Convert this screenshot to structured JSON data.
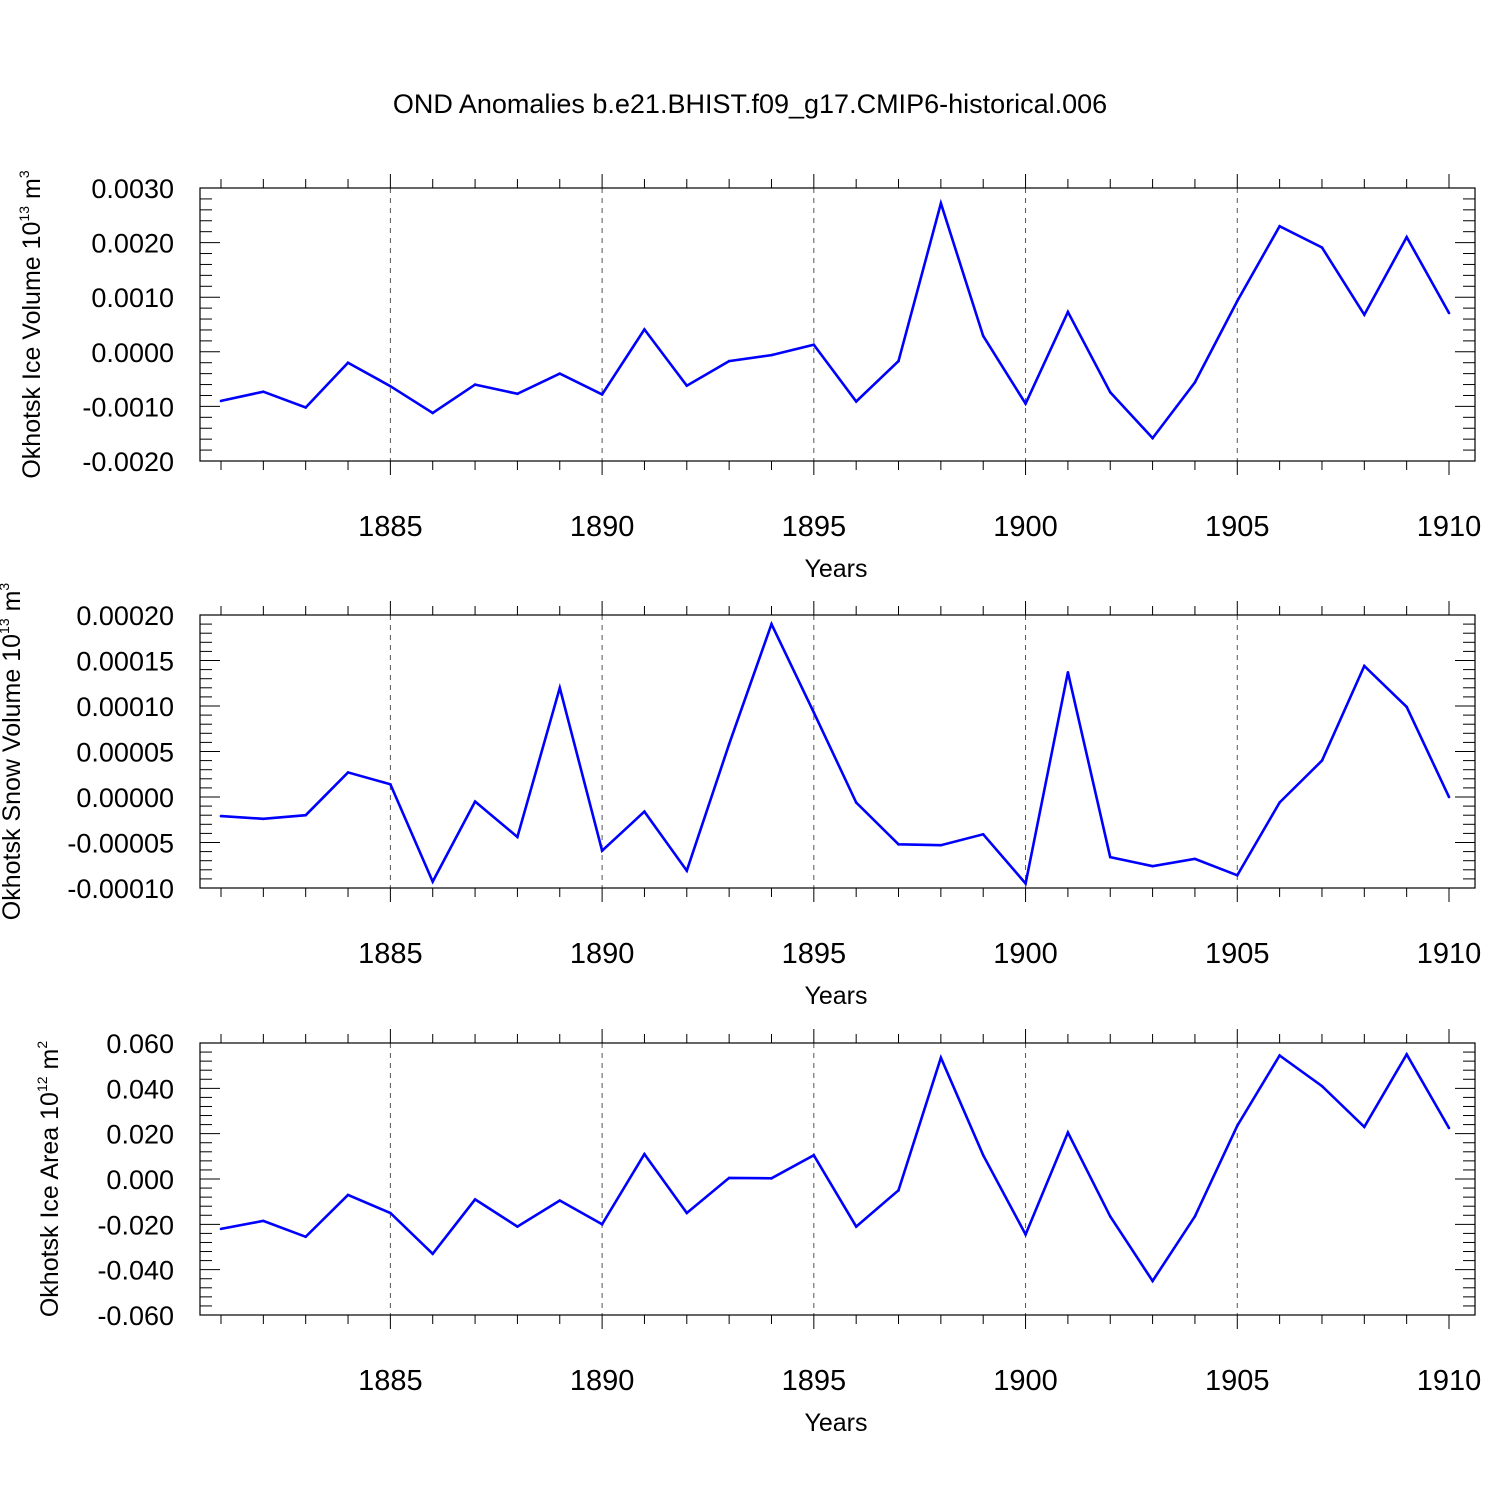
{
  "title": "OND Anomalies b.e21.BHIST.f09_g17.CMIP6-historical.006",
  "colors": {
    "line": "#0000ff",
    "axis": "#000000",
    "grid": "#555555"
  },
  "chart_data": [
    {
      "type": "line",
      "ylabel_main": "Okhotsk Ice Volume 10",
      "ylabel_exp": "13",
      "ylabel_unit": "m",
      "ylabel_unit_exp": "3",
      "xlabel": "Years",
      "xlim": [
        1881,
        1910
      ],
      "ylim": [
        -0.002,
        0.003
      ],
      "yticks": [
        -0.002,
        -0.001,
        0.0,
        0.001,
        0.002,
        0.003
      ],
      "ytick_labels": [
        "-0.0020",
        "-0.0010",
        "0.0000",
        "0.0010",
        "0.0020",
        "0.0030"
      ],
      "xticks": [
        1885,
        1890,
        1895,
        1900,
        1905,
        1910
      ],
      "xtick_labels": [
        "1885",
        "1890",
        "1895",
        "1900",
        "1905",
        "1910"
      ],
      "x": [
        1881,
        1882,
        1883,
        1884,
        1885,
        1886,
        1887,
        1888,
        1889,
        1890,
        1891,
        1892,
        1893,
        1894,
        1895,
        1896,
        1897,
        1898,
        1899,
        1900,
        1901,
        1902,
        1903,
        1904,
        1905,
        1906,
        1907,
        1908,
        1909,
        1910
      ],
      "series": [
        {
          "name": "Ice Volume",
          "values": [
            -0.0009,
            -0.00073,
            -0.00102,
            -0.0002,
            -0.00063,
            -0.00112,
            -0.0006,
            -0.00077,
            -0.0004,
            -0.00078,
            0.00041,
            -0.00062,
            -0.00017,
            -6e-05,
            0.00013,
            -0.00091,
            -0.00017,
            0.00272,
            0.00029,
            -0.00095,
            0.00073,
            -0.00074,
            -0.00158,
            -0.00056,
            0.00093,
            0.0023,
            0.00191,
            0.00068,
            0.0021,
            0.00071
          ]
        }
      ],
      "grid": "vertical dashed at major x ticks"
    },
    {
      "type": "line",
      "ylabel_main": "Okhotsk Snow Volume 10",
      "ylabel_exp": "13",
      "ylabel_unit": "m",
      "ylabel_unit_exp": "3",
      "xlabel": "Years",
      "xlim": [
        1881,
        1910
      ],
      "ylim": [
        -0.0001,
        0.0002
      ],
      "yticks": [
        -0.0001,
        -5e-05,
        0.0,
        5e-05,
        0.0001,
        0.00015,
        0.0002
      ],
      "ytick_labels": [
        "-0.00010",
        "-0.00005",
        "0.00000",
        "0.00005",
        "0.00010",
        "0.00015",
        "0.00020"
      ],
      "xticks": [
        1885,
        1890,
        1895,
        1900,
        1905,
        1910
      ],
      "xtick_labels": [
        "1885",
        "1890",
        "1895",
        "1900",
        "1905",
        "1910"
      ],
      "x": [
        1881,
        1882,
        1883,
        1884,
        1885,
        1886,
        1887,
        1888,
        1889,
        1890,
        1891,
        1892,
        1893,
        1894,
        1895,
        1896,
        1897,
        1898,
        1899,
        1900,
        1901,
        1902,
        1903,
        1904,
        1905,
        1906,
        1907,
        1908,
        1909,
        1910
      ],
      "series": [
        {
          "name": "Snow Volume",
          "values": [
            -2.1e-05,
            -2.4e-05,
            -2e-05,
            2.7e-05,
            1.4e-05,
            -9.3e-05,
            -5e-06,
            -4.4e-05,
            0.00012,
            -5.9e-05,
            -1.6e-05,
            -8.1e-05,
            5.8e-05,
            0.00019,
            9.3e-05,
            -6e-06,
            -5.2e-05,
            -5.3e-05,
            -4.1e-05,
            -9.5e-05,
            0.000137,
            -6.6e-05,
            -7.6e-05,
            -6.8e-05,
            -8.6e-05,
            -6e-06,
            4e-05,
            0.000144,
            9.9e-05,
            0.0
          ]
        }
      ],
      "grid": "vertical dashed at major x ticks"
    },
    {
      "type": "line",
      "ylabel_main": "Okhotsk Ice Area 10",
      "ylabel_exp": "12",
      "ylabel_unit": "m",
      "ylabel_unit_exp": "2",
      "xlabel": "Years",
      "xlim": [
        1881,
        1910
      ],
      "ylim": [
        -0.06,
        0.06
      ],
      "yticks": [
        -0.06,
        -0.04,
        -0.02,
        0.0,
        0.02,
        0.04,
        0.06
      ],
      "ytick_labels": [
        "-0.060",
        "-0.040",
        "-0.020",
        "0.000",
        "0.020",
        "0.040",
        "0.060"
      ],
      "xticks": [
        1885,
        1890,
        1895,
        1900,
        1905,
        1910
      ],
      "xtick_labels": [
        "1885",
        "1890",
        "1895",
        "1900",
        "1905",
        "1910"
      ],
      "x": [
        1881,
        1882,
        1883,
        1884,
        1885,
        1886,
        1887,
        1888,
        1889,
        1890,
        1891,
        1892,
        1893,
        1894,
        1895,
        1896,
        1897,
        1898,
        1899,
        1900,
        1901,
        1902,
        1903,
        1904,
        1905,
        1906,
        1907,
        1908,
        1909,
        1910
      ],
      "series": [
        {
          "name": "Ice Area",
          "values": [
            -0.022,
            -0.0185,
            -0.0255,
            -0.007,
            -0.015,
            -0.033,
            -0.009,
            -0.021,
            -0.0095,
            -0.02,
            0.011,
            -0.015,
            0.0005,
            0.0003,
            0.0105,
            -0.021,
            -0.005,
            0.0535,
            0.0105,
            -0.0245,
            0.0205,
            -0.0165,
            -0.045,
            -0.0165,
            0.0235,
            0.0545,
            0.041,
            0.023,
            0.055,
            0.0225
          ]
        }
      ],
      "grid": "vertical dashed at major x ticks"
    }
  ]
}
